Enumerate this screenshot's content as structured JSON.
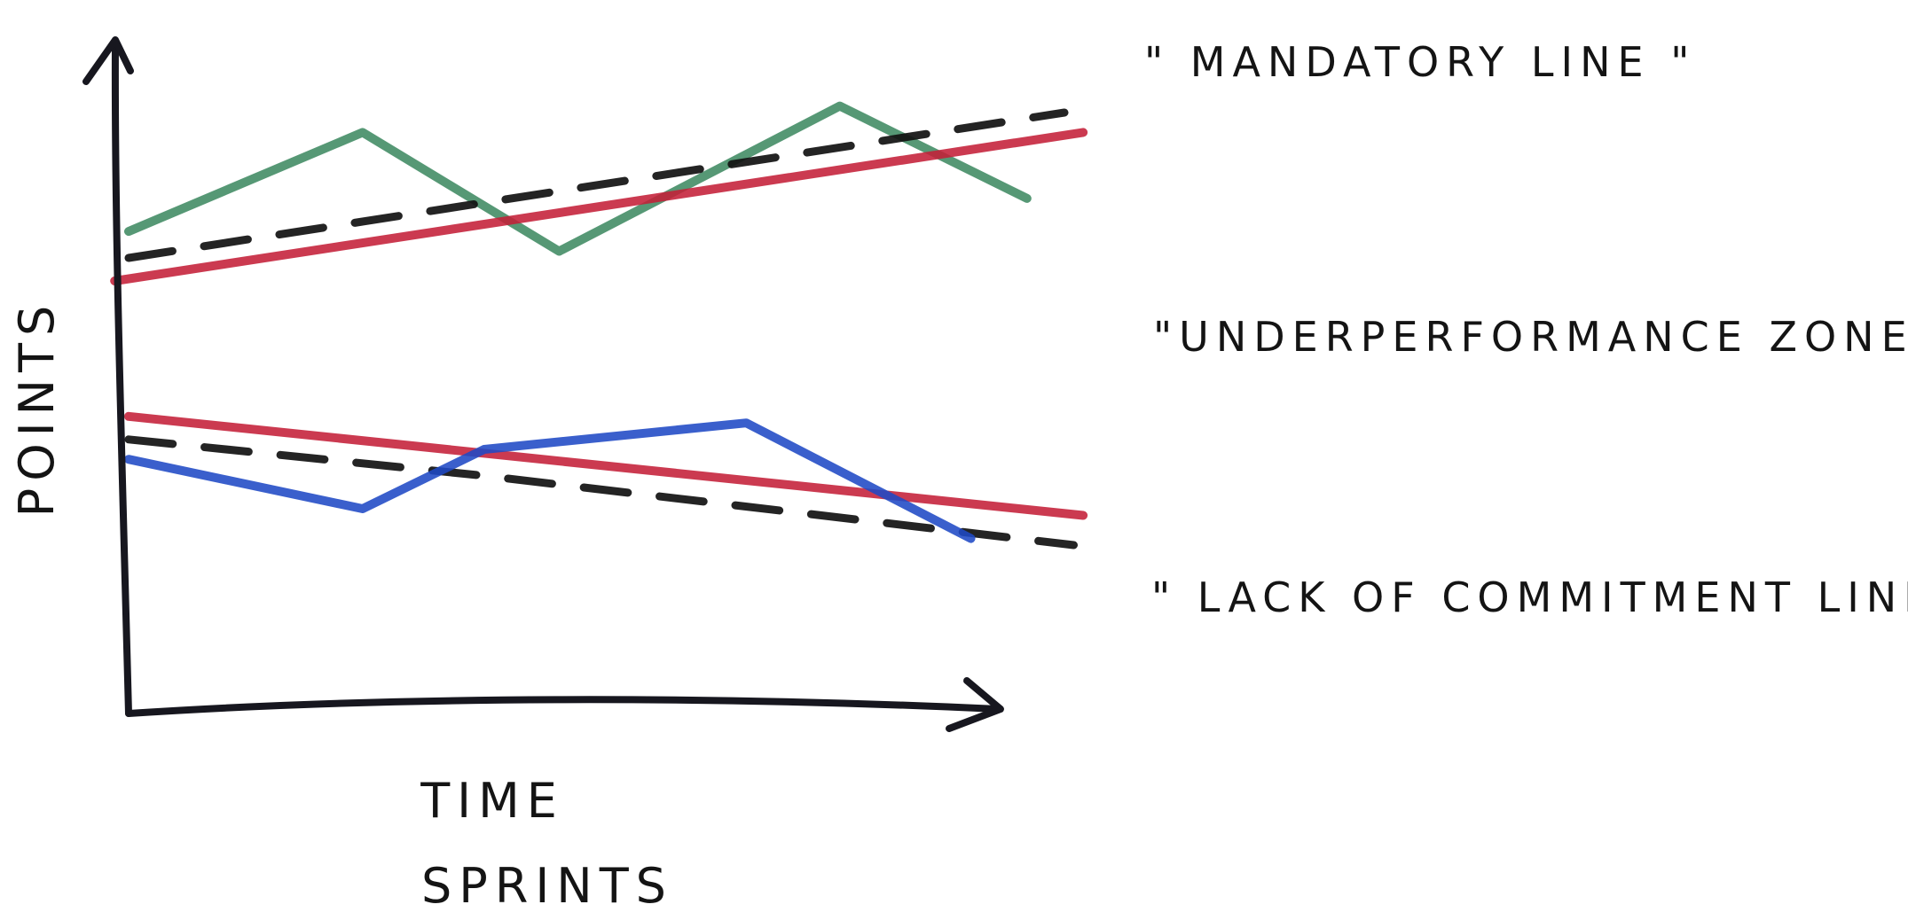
{
  "chart_data": {
    "type": "line",
    "title": "",
    "xlabel": "TIME",
    "xlabel_secondary": "SPRINTS",
    "ylabel": "POINTS",
    "xlim": [
      0,
      10
    ],
    "ylim": [
      0,
      10
    ],
    "grid": false,
    "legend": false,
    "annotations": [
      {
        "text": "\" MANDATORY LINE \""
      },
      {
        "text": "\"UNDERPERFORMANCE ZONE\""
      },
      {
        "text": "\" LACK OF COMMITMENT LINE \""
      }
    ],
    "series": [
      {
        "color": "#3f8a62",
        "style": "solid",
        "points": [
          [
            0,
            7.3
          ],
          [
            2.5,
            8.8
          ],
          [
            4.6,
            7.0
          ],
          [
            7.6,
            9.2
          ],
          [
            9.6,
            7.8
          ]
        ]
      },
      {
        "color": "#111111",
        "style": "dashed",
        "points": [
          [
            0,
            6.9
          ],
          [
            10,
            9.1
          ]
        ]
      },
      {
        "color": "#c41f38",
        "style": "solid",
        "points": [
          [
            -0.15,
            6.55
          ],
          [
            10.2,
            8.8
          ]
        ]
      },
      {
        "color": "#c41f38",
        "style": "solid",
        "points": [
          [
            0,
            4.5
          ],
          [
            10.2,
            3.0
          ]
        ]
      },
      {
        "color": "#111111",
        "style": "dashed",
        "points": [
          [
            0,
            4.15
          ],
          [
            3.8,
            3.6
          ],
          [
            10.1,
            2.55
          ]
        ]
      },
      {
        "color": "#1f49c5",
        "style": "solid",
        "points": [
          [
            0,
            3.85
          ],
          [
            2.5,
            3.1
          ],
          [
            3.8,
            4.0
          ],
          [
            6.6,
            4.4
          ],
          [
            9.0,
            2.65
          ]
        ]
      }
    ]
  }
}
